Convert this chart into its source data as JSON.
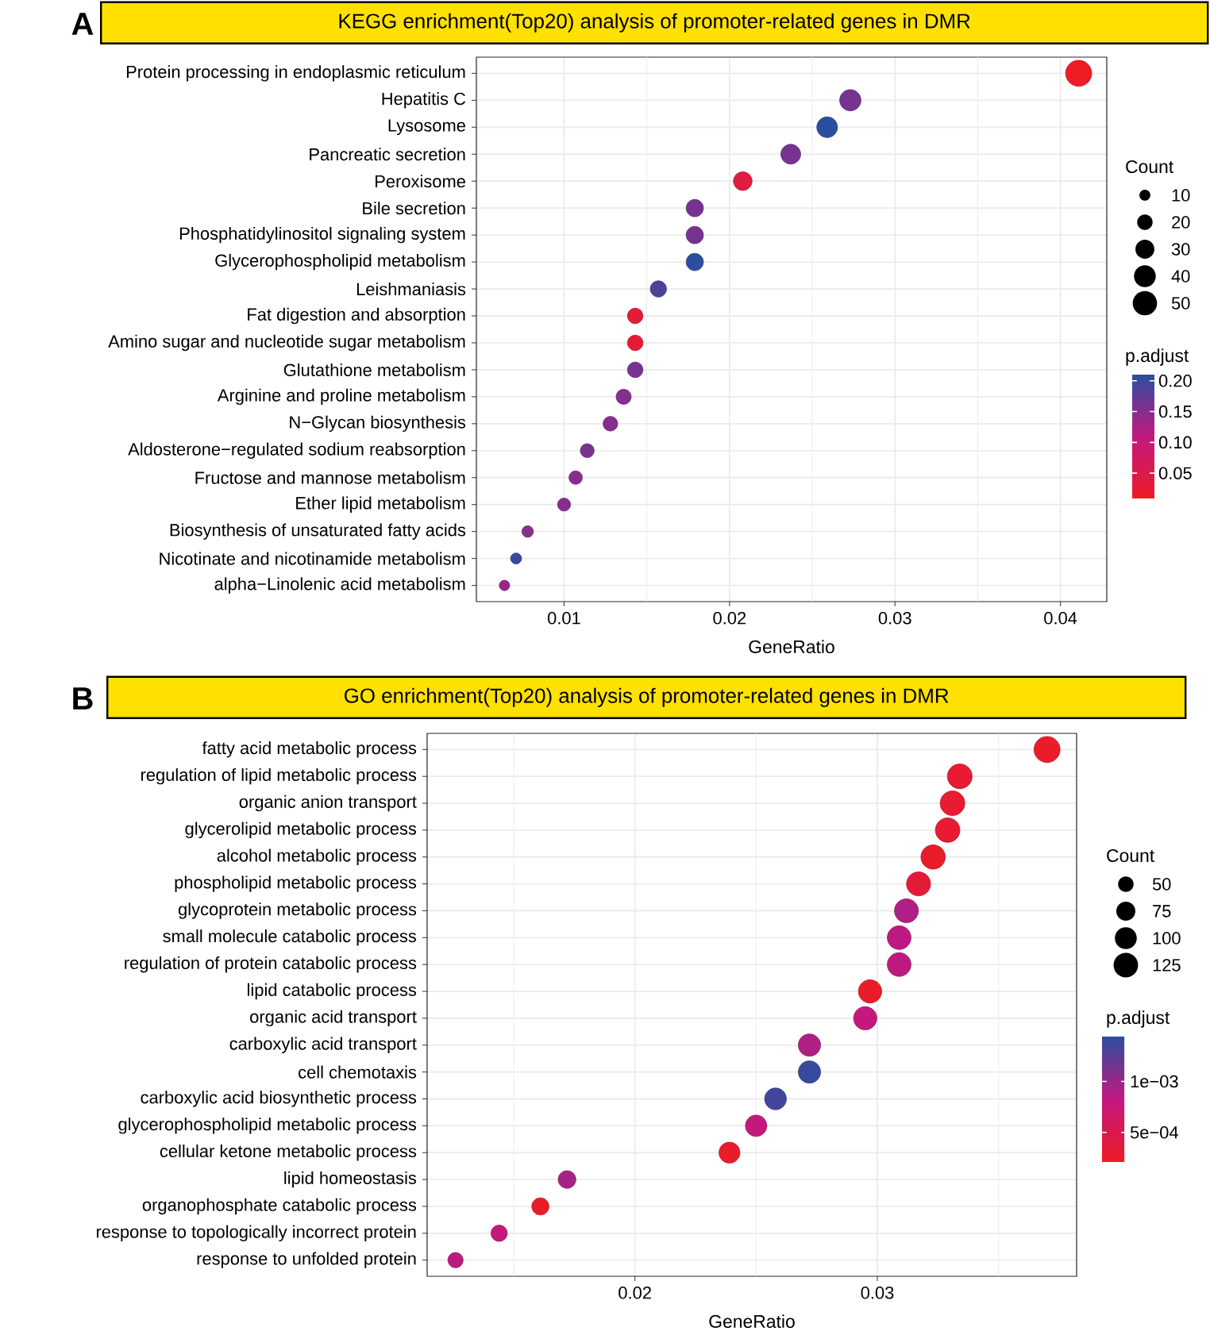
{
  "chart_data": [
    {
      "type": "bubble",
      "title": "KEGG enrichment(Top20) analysis of promoter-related genes in DMR",
      "annotations": [
        "A"
      ],
      "orientation": "horizontal",
      "categories": [
        "Protein processing in endoplasmic reticulum",
        "Hepatitis C",
        "Lysosome",
        "Pancreatic secretion",
        "Peroxisome",
        "Bile secretion",
        "Phosphatidylinositol signaling system",
        "Glycerophospholipid metabolism",
        "Leishmaniasis",
        "Fat digestion and absorption",
        "Amino sugar and nucleotide sugar metabolism",
        "Glutathione metabolism",
        "Arginine and proline metabolism",
        "N−Glycan biosynthesis",
        "Aldosterone−regulated sodium reabsorption",
        "Fructose and mannose metabolism",
        "Ether lipid metabolism",
        "Biosynthesis of unsaturated fatty acids",
        "Nicotinate and nicotinamide metabolism",
        "alpha−Linolenic acid metabolism"
      ],
      "values": [
        0.0411,
        0.0273,
        0.0259,
        0.0237,
        0.0208,
        0.0179,
        0.0179,
        0.0179,
        0.0157,
        0.0143,
        0.0143,
        0.0143,
        0.0136,
        0.0128,
        0.0114,
        0.0107,
        0.01,
        0.0078,
        0.0071,
        0.0064
      ],
      "sizes": [
        57,
        38,
        36,
        33,
        29,
        25,
        25,
        25,
        22,
        20,
        20,
        20,
        19,
        18,
        16,
        15,
        14,
        11,
        10,
        9
      ],
      "size_legend": [
        10,
        20,
        30,
        40,
        50
      ],
      "legend_title": "Count",
      "cvalues": [
        0.01,
        0.16,
        0.21,
        0.16,
        0.04,
        0.16,
        0.16,
        0.21,
        0.19,
        0.03,
        0.03,
        0.16,
        0.15,
        0.15,
        0.16,
        0.15,
        0.15,
        0.15,
        0.2,
        0.14
      ],
      "clabel": "p.adjust",
      "clim": [
        0.009,
        0.21
      ],
      "cticks": [
        {
          "value": 0.05,
          "label": "0.05"
        },
        {
          "value": 0.1,
          "label": "0.10"
        },
        {
          "value": 0.15,
          "label": "0.15"
        },
        {
          "value": 0.2,
          "label": "0.20"
        }
      ],
      "xlabel": "GeneRatio",
      "xlim": [
        0.0047,
        0.0428
      ],
      "xticks": [
        0.01,
        {
          "value": 0.015,
          "label": null
        },
        0.02,
        {
          "value": 0.025,
          "label": null
        },
        0.03,
        {
          "value": 0.035,
          "label": null
        },
        0.04
      ],
      "grid": true
    },
    {
      "type": "bubble",
      "title": "GO enrichment(Top20) analysis of promoter-related genes in DMR",
      "annotations": [
        "B"
      ],
      "orientation": "horizontal",
      "categories": [
        "fatty acid metabolic process",
        "regulation of lipid metabolic process",
        "organic anion transport",
        "glycerolipid metabolic process",
        "alcohol metabolic process",
        "phospholipid metabolic process",
        "glycoprotein metabolic process",
        "small molecule catabolic process",
        "regulation of protein catabolic process",
        "lipid catabolic process",
        "organic acid transport",
        "carboxylic acid transport",
        "cell chemotaxis",
        "carboxylic acid biosynthetic process",
        "glycerophospholipid metabolic process",
        "cellular ketone metabolic process",
        "lipid homeostasis",
        "organophosphate catabolic process",
        "response to topologically incorrect protein",
        "response to unfolded protein"
      ],
      "values": [
        0.037,
        0.0334,
        0.0331,
        0.0329,
        0.0323,
        0.0317,
        0.0312,
        0.0309,
        0.0309,
        0.0297,
        0.0295,
        0.0272,
        0.0272,
        0.0258,
        0.025,
        0.0239,
        0.0172,
        0.0161,
        0.0144,
        0.0126
      ],
      "sizes": [
        141,
        127,
        126,
        125,
        123,
        120,
        119,
        117,
        117,
        113,
        112,
        103,
        103,
        98,
        95,
        91,
        65,
        61,
        55,
        48
      ],
      "size_legend": [
        50,
        75,
        100,
        125
      ],
      "legend_title": "Count",
      "cvalues": [
        0.00025,
        0.0003,
        0.0003,
        0.0003,
        0.00025,
        0.00035,
        0.0009,
        0.00085,
        0.00085,
        0.00025,
        0.0008,
        0.0009,
        0.0014,
        0.00135,
        0.0008,
        0.00025,
        0.00095,
        0.00025,
        0.0008,
        0.00085
      ],
      "clabel": "p.adjust",
      "clim": [
        0.00021,
        0.00144
      ],
      "cticks": [
        {
          "value": 0.0005,
          "label": "5e−04"
        },
        {
          "value": 0.001,
          "label": "1e−03"
        }
      ],
      "xlabel": "GeneRatio",
      "xlim": [
        0.01143,
        0.03822
      ],
      "xticks": [
        {
          "value": 0.015,
          "label": null
        },
        0.02,
        {
          "value": 0.025,
          "label": null
        },
        0.03,
        {
          "value": 0.035,
          "label": null
        }
      ],
      "grid": true
    }
  ]
}
